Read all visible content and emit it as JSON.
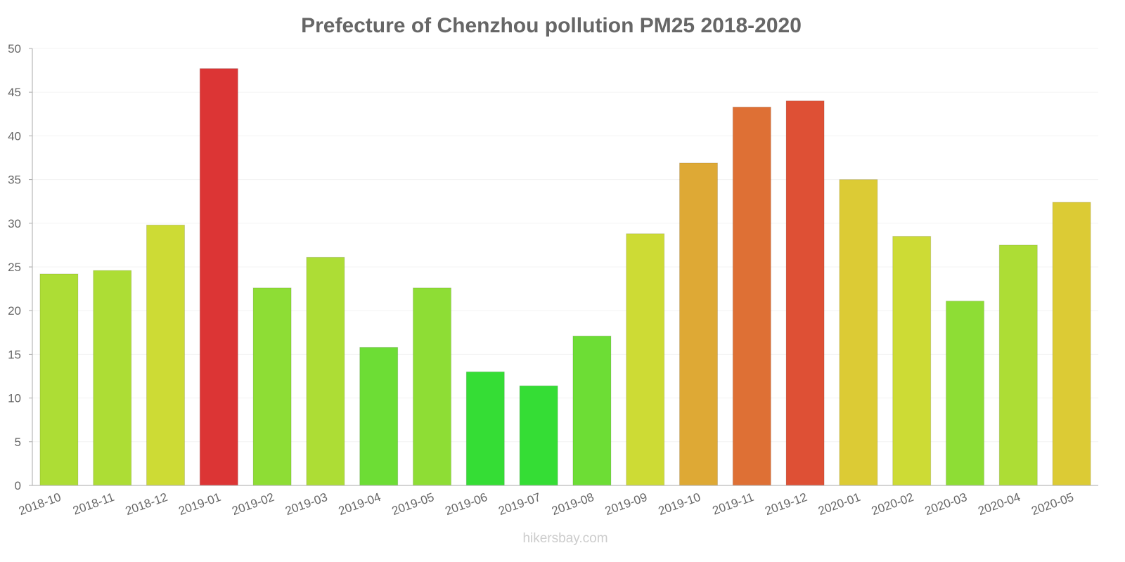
{
  "chart_data": {
    "type": "bar",
    "title": "Prefecture of Chenzhou pollution PM25 2018-2020",
    "xlabel": "",
    "ylabel": "",
    "ylim": [
      0,
      50
    ],
    "yticks": [
      0,
      5,
      10,
      15,
      20,
      25,
      30,
      35,
      40,
      45,
      50
    ],
    "grid": true,
    "categories": [
      "2018-10",
      "2018-11",
      "2018-12",
      "2019-01",
      "2019-02",
      "2019-03",
      "2019-04",
      "2019-05",
      "2019-06",
      "2019-07",
      "2019-08",
      "2019-09",
      "2019-10",
      "2019-11",
      "2019-12",
      "2020-01",
      "2020-02",
      "2020-03",
      "2020-04",
      "2020-05"
    ],
    "values": [
      24.2,
      24.6,
      29.8,
      47.7,
      22.6,
      26.1,
      15.8,
      22.6,
      13.0,
      11.4,
      17.1,
      28.8,
      36.9,
      43.3,
      44.0,
      35.0,
      28.5,
      21.1,
      27.5,
      32.4
    ],
    "colors": [
      "#addd35",
      "#addd35",
      "#cddb35",
      "#dc3535",
      "#8edd35",
      "#addd35",
      "#6ddd35",
      "#8edd35",
      "#35dd35",
      "#35dd35",
      "#6ddd35",
      "#cddb35",
      "#dea935",
      "#de7035",
      "#de5035",
      "#dccb35",
      "#cddb35",
      "#8edd35",
      "#addd35",
      "#dccb35"
    ]
  },
  "watermark": "hikersbay.com"
}
